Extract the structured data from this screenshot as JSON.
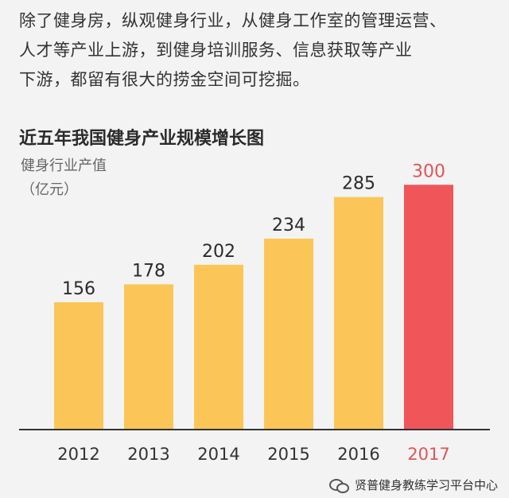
{
  "intro": {
    "lines": [
      "除了健身房，纵观健身行业，从健身工作室的管理运营、",
      "人才等产业上游，到健身培训服务、信息获取等产业",
      "下游，都留有很大的捞金空间可挖掘。"
    ]
  },
  "chart_data": {
    "type": "bar",
    "title": "近五年我国健身产业规模增长图",
    "ylabel": "健身行业产值",
    "yunit": "（亿元）",
    "categories": [
      "2012",
      "2013",
      "2014",
      "2015",
      "2016",
      "2017"
    ],
    "values": [
      156,
      178,
      202,
      234,
      285,
      300
    ],
    "ylim": [
      0,
      310
    ],
    "grid": false,
    "colors": {
      "bar": "#fbc657",
      "highlight_bar": "#f0555a",
      "label": "#2b2b2b",
      "highlight_label": "#e0555a",
      "axis": "#333333"
    },
    "highlight_index": 5
  },
  "watermark": {
    "icon": "wechat-icon",
    "text": "贤普健身教练学习平台中心"
  }
}
